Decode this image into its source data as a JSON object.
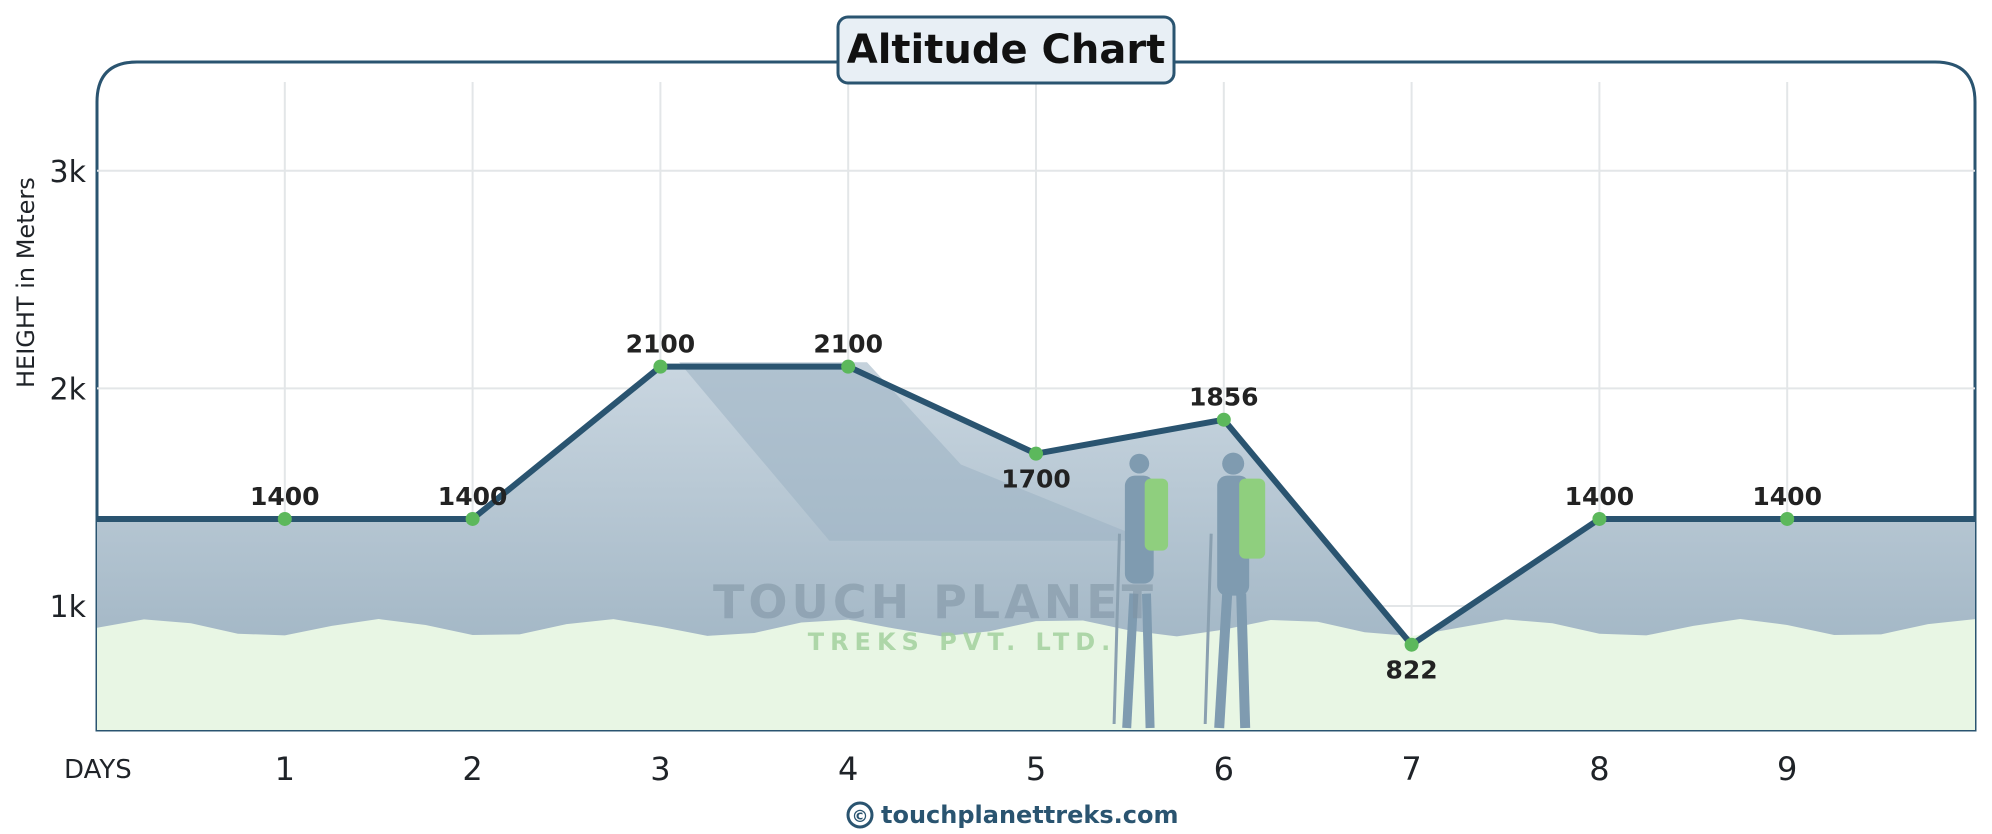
{
  "chart_data": {
    "type": "line",
    "title": "Altitude Chart",
    "xlabel": "DAYS",
    "ylabel": "HEIGHT in Meters",
    "x": [
      1,
      2,
      3,
      4,
      5,
      6,
      7,
      8,
      9
    ],
    "values": [
      1400,
      1400,
      2100,
      2100,
      1700,
      1856,
      822,
      1400,
      1400
    ],
    "data_labels": [
      "1400",
      "1400",
      "2100",
      "2100",
      "1700",
      "1856",
      "822",
      "1400",
      "1400"
    ],
    "y_ticks": [
      1000,
      2000,
      3000
    ],
    "y_tick_labels": [
      "1k",
      "2k",
      "3k"
    ],
    "x_tick_labels": [
      "1",
      "2",
      "3",
      "4",
      "5",
      "6",
      "7",
      "8",
      "9"
    ],
    "xlim": [
      0,
      10
    ],
    "ylim": [
      430,
      3500
    ],
    "grid": true,
    "reference_level": 1400
  },
  "watermark": {
    "line1": "TOUCH PLANET",
    "line2": "TREKS PVT. LTD."
  },
  "footer": {
    "copyright_symbol": "©",
    "site": "touchplanettreks.com"
  },
  "colors": {
    "line": "#2a5470",
    "marker": "#5cb85c",
    "frame": "#2a5470",
    "fill": "#aabccb",
    "ground": "#e8f6e4"
  }
}
